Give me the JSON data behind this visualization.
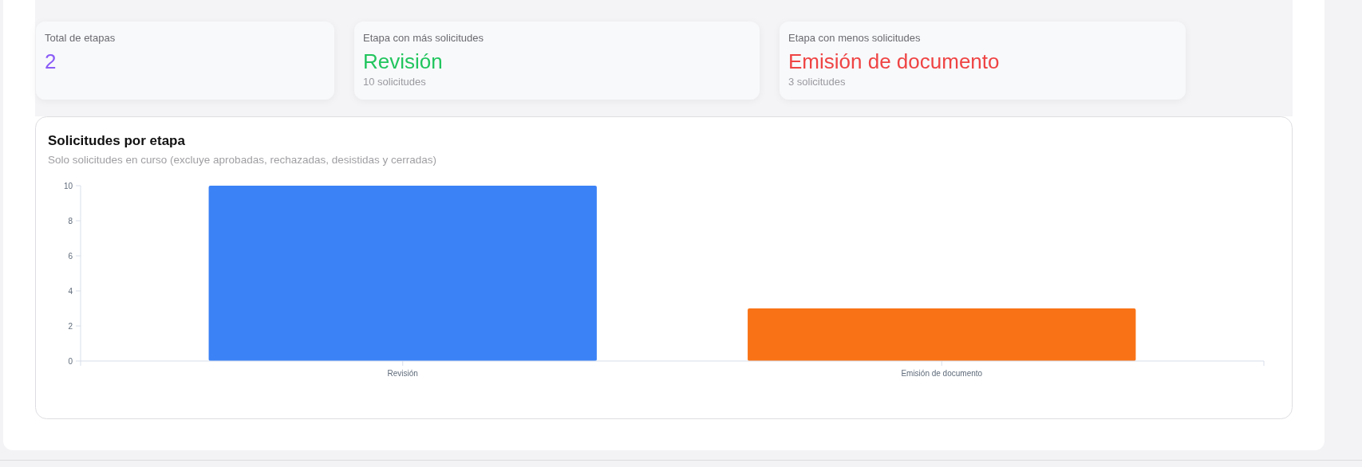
{
  "chart_data": [
    {
      "type": "other",
      "title": "Total de etapas",
      "annotations": [
        "2"
      ],
      "color": "#8b5cf6"
    },
    {
      "type": "other",
      "title": "Etapa con más solicitudes",
      "annotations": [
        "Revisión",
        "10 solicitudes"
      ],
      "color": "#22c55e"
    },
    {
      "type": "other",
      "title": "Etapa con menos solicitudes",
      "annotations": [
        "Emisión de documento",
        "3 solicitudes"
      ],
      "color": "#ef4444"
    },
    {
      "type": "bar",
      "title": "Solicitudes por etapa",
      "subtitle": "Solo solicitudes en curso (excluye aprobadas, rechazadas, desistidas y cerradas)",
      "categories": [
        "Revisión",
        "Emisión de documento"
      ],
      "values": [
        10,
        3
      ],
      "colors": [
        "#3b82f6",
        "#f97316"
      ],
      "ylim": [
        0,
        10
      ],
      "yticks": [
        0,
        2,
        4,
        6,
        8,
        10
      ]
    }
  ]
}
